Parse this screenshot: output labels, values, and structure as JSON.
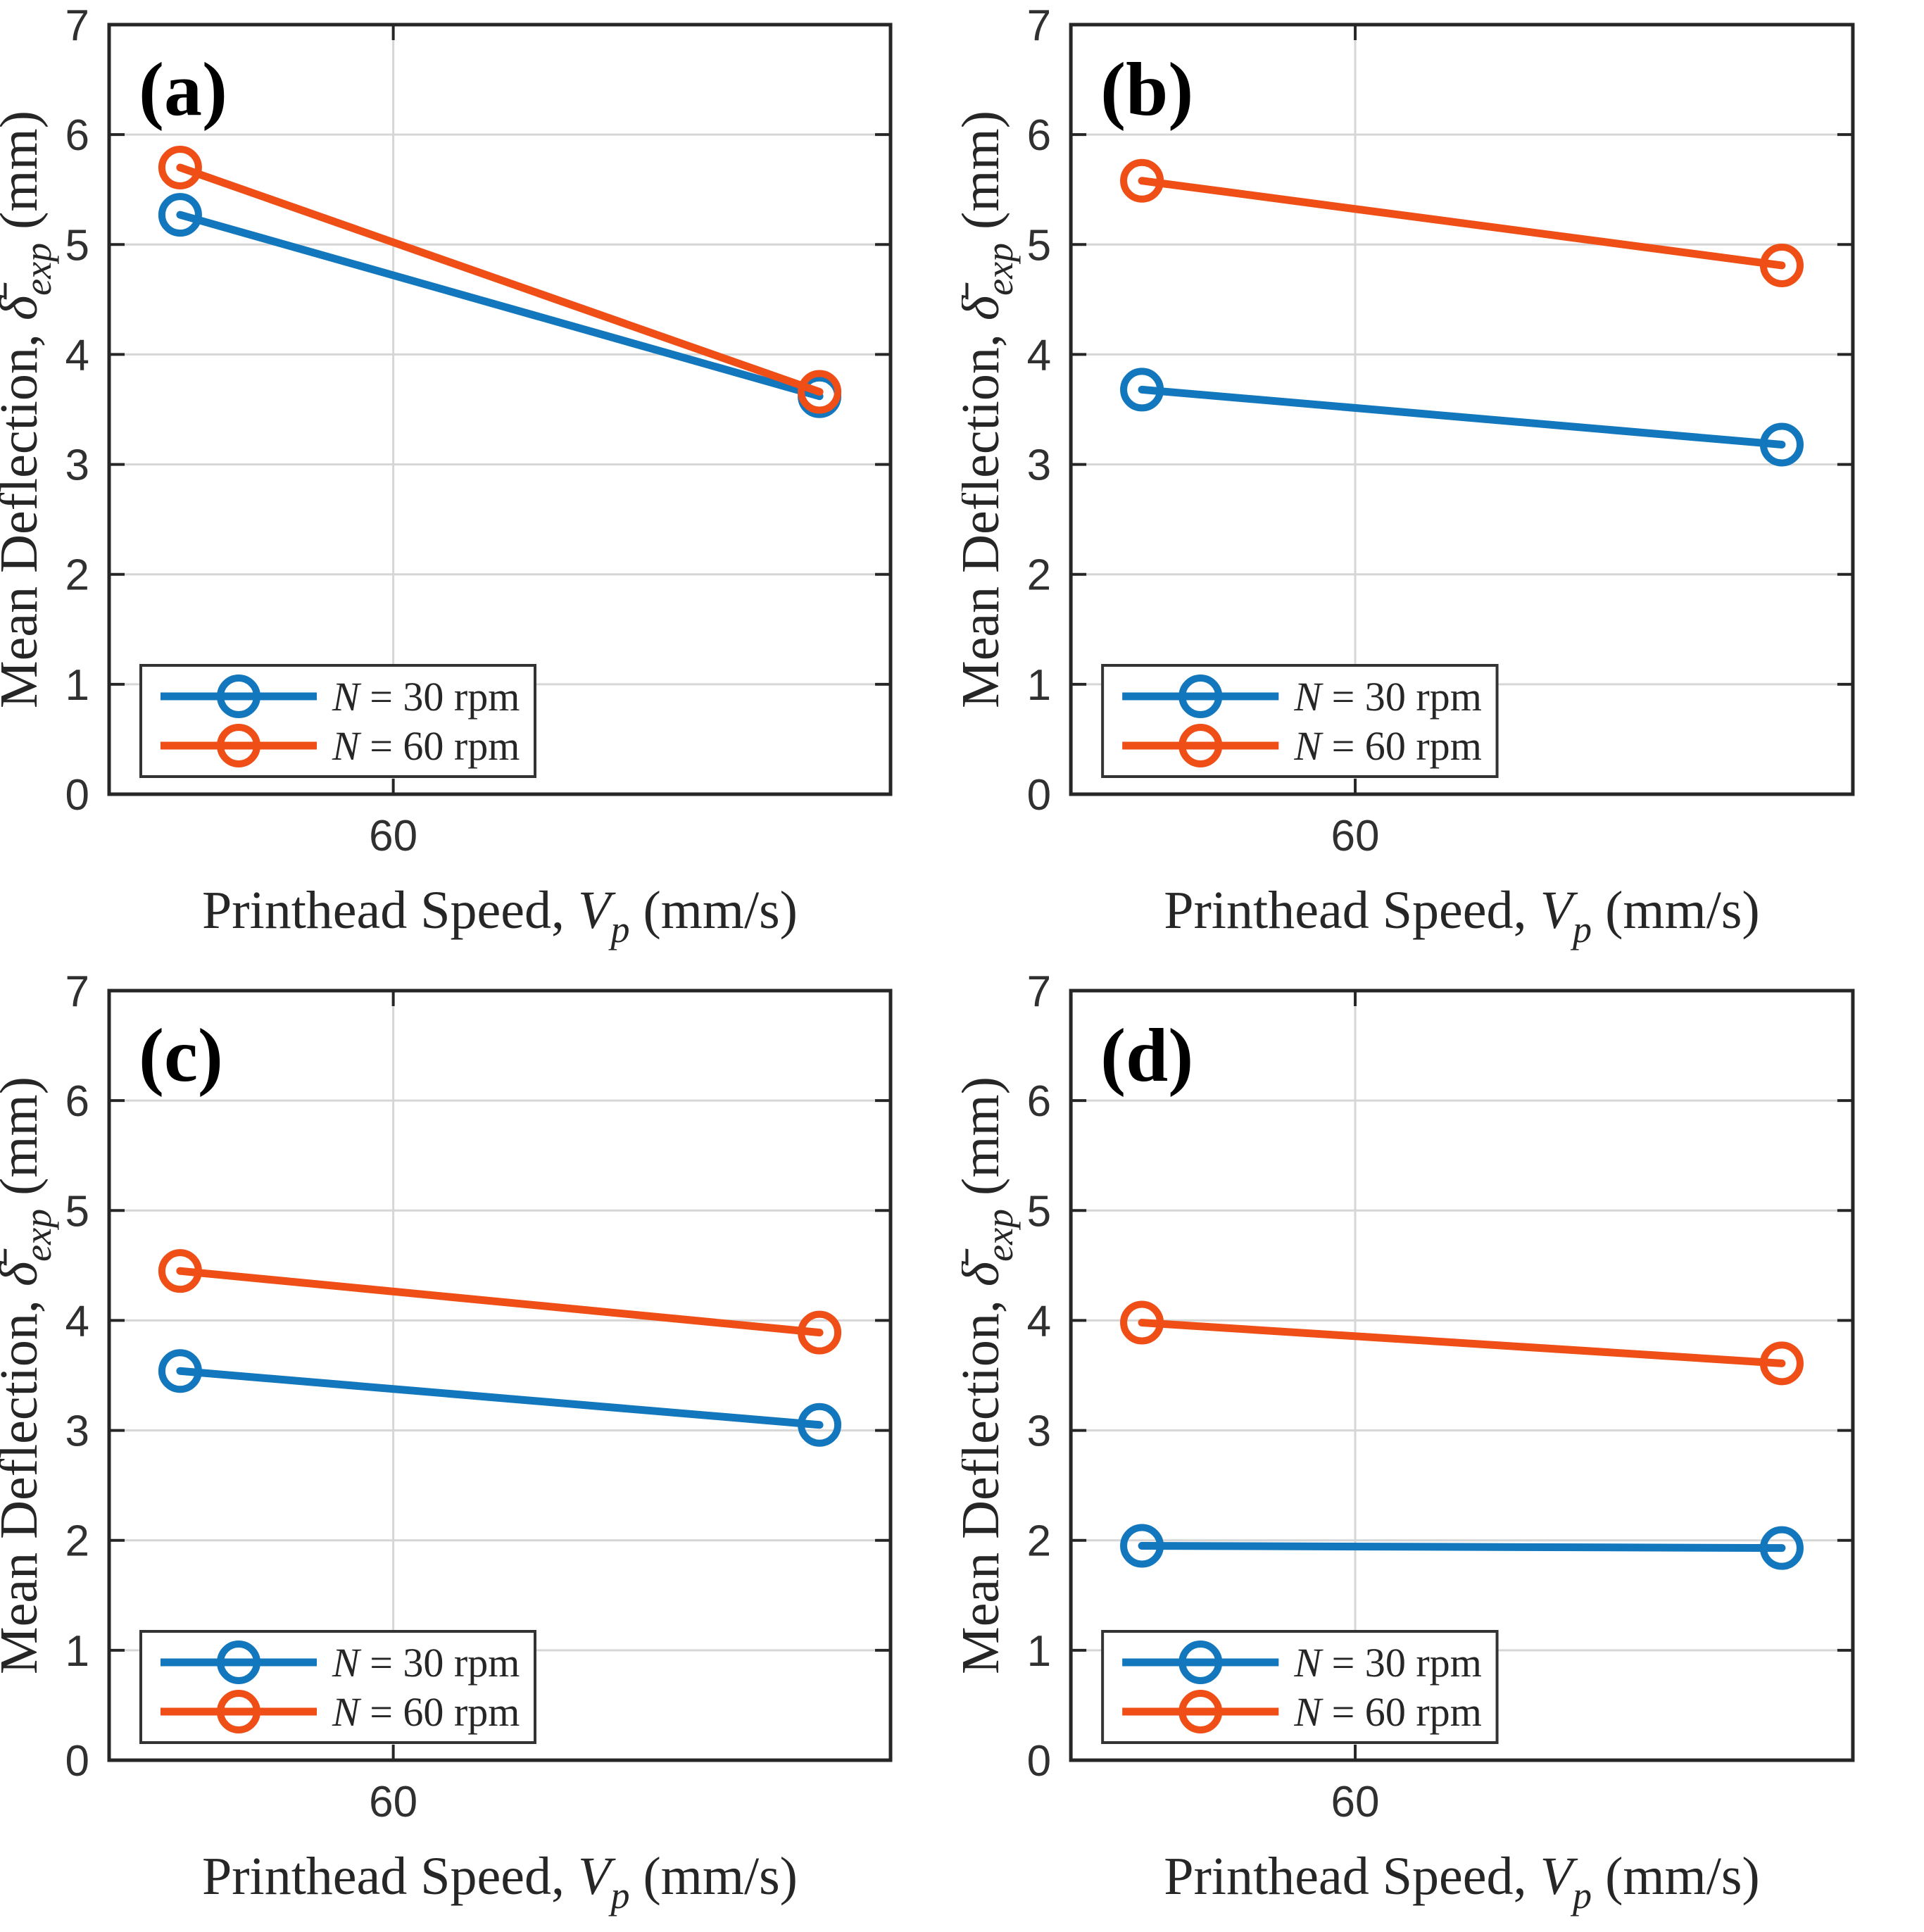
{
  "figure": {
    "background": "#ffffff",
    "colors": {
      "n30": "#1277bd",
      "n60": "#ef4e17",
      "axis": "#262626",
      "grid": "#d6d6d6",
      "tick_text": "#303030",
      "label_text": "#262626",
      "legend_border": "#333333",
      "legend_background": "#ffffff"
    }
  },
  "axes_text": {
    "xlabel": {
      "prefix": "Printhead Speed, ",
      "variable": "V",
      "subscript": "p",
      "suffix": " (mm/s)"
    },
    "ylabel": {
      "prefix": "Mean Deflection, ",
      "variable": "δ̄",
      "subscript": "exp",
      "suffix": " (mm)"
    },
    "xtick_label": "60",
    "ytick_labels": [
      "0",
      "1",
      "2",
      "3",
      "4",
      "5",
      "6",
      "7"
    ]
  },
  "legend": {
    "position": "bottom-left",
    "entries": [
      {
        "variable": "N",
        "rest": " = 30 rpm",
        "series_key": "n30"
      },
      {
        "variable": "N",
        "rest": " = 60 rpm",
        "series_key": "n60"
      }
    ]
  },
  "chart_data": [
    {
      "type": "line",
      "panel_label": "(a)",
      "xlabel": "Printhead Speed, V_p (mm/s)",
      "ylabel": "Mean Deflection, δ̄_exp (mm)",
      "x": [
        45,
        90
      ],
      "xlim": [
        40,
        95
      ],
      "xticks": [
        60
      ],
      "ylim": [
        0,
        7
      ],
      "yticks": [
        0,
        1,
        2,
        3,
        4,
        5,
        6,
        7
      ],
      "grid": true,
      "legend_position": "bottom-left",
      "series": [
        {
          "name": "N = 30 rpm",
          "color_key": "n30",
          "marker": "circle",
          "values": [
            5.27,
            3.62
          ]
        },
        {
          "name": "N = 60 rpm",
          "color_key": "n60",
          "marker": "circle",
          "values": [
            5.7,
            3.66
          ]
        }
      ]
    },
    {
      "type": "line",
      "panel_label": "(b)",
      "xlabel": "Printhead Speed, V_p (mm/s)",
      "ylabel": "Mean Deflection, δ̄_exp (mm)",
      "x": [
        45,
        90
      ],
      "xlim": [
        40,
        95
      ],
      "xticks": [
        60
      ],
      "ylim": [
        0,
        7
      ],
      "yticks": [
        0,
        1,
        2,
        3,
        4,
        5,
        6,
        7
      ],
      "grid": true,
      "legend_position": "bottom-left",
      "series": [
        {
          "name": "N = 30 rpm",
          "color_key": "n30",
          "marker": "circle",
          "values": [
            3.68,
            3.18
          ]
        },
        {
          "name": "N = 60 rpm",
          "color_key": "n60",
          "marker": "circle",
          "values": [
            5.58,
            4.81
          ]
        }
      ]
    },
    {
      "type": "line",
      "panel_label": "(c)",
      "xlabel": "Printhead Speed, V_p (mm/s)",
      "ylabel": "Mean Deflection, δ̄_exp (mm)",
      "x": [
        45,
        90
      ],
      "xlim": [
        40,
        95
      ],
      "xticks": [
        60
      ],
      "ylim": [
        0,
        7
      ],
      "yticks": [
        0,
        1,
        2,
        3,
        4,
        5,
        6,
        7
      ],
      "grid": true,
      "legend_position": "bottom-left",
      "series": [
        {
          "name": "N = 30 rpm",
          "color_key": "n30",
          "marker": "circle",
          "values": [
            3.54,
            3.05
          ]
        },
        {
          "name": "N = 60 rpm",
          "color_key": "n60",
          "marker": "circle",
          "values": [
            4.45,
            3.89
          ]
        }
      ]
    },
    {
      "type": "line",
      "panel_label": "(d)",
      "xlabel": "Printhead Speed, V_p (mm/s)",
      "ylabel": "Mean Deflection, δ̄_exp (mm)",
      "x": [
        45,
        90
      ],
      "xlim": [
        40,
        95
      ],
      "xticks": [
        60
      ],
      "ylim": [
        0,
        7
      ],
      "yticks": [
        0,
        1,
        2,
        3,
        4,
        5,
        6,
        7
      ],
      "grid": true,
      "legend_position": "bottom-left",
      "series": [
        {
          "name": "N = 30 rpm",
          "color_key": "n30",
          "marker": "circle",
          "values": [
            1.95,
            1.93
          ]
        },
        {
          "name": "N = 60 rpm",
          "color_key": "n60",
          "marker": "circle",
          "values": [
            3.98,
            3.61
          ]
        }
      ]
    }
  ]
}
